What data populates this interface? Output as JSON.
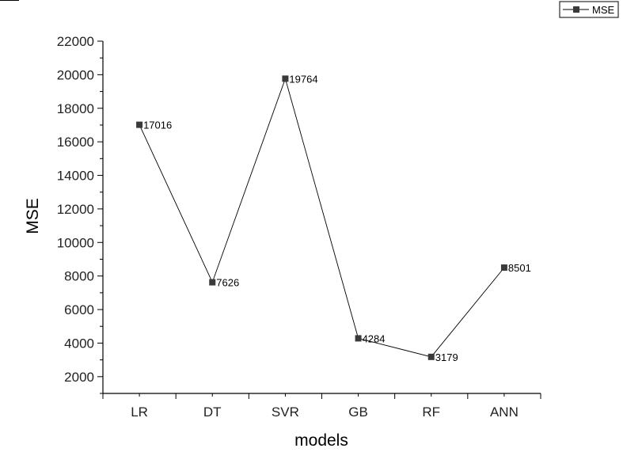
{
  "chart_data": {
    "type": "line",
    "xlabel": "models",
    "ylabel": "MSE",
    "categories": [
      "LR",
      "DT",
      "SVR",
      "GB",
      "RF",
      "ANN"
    ],
    "series": [
      {
        "name": "MSE",
        "values": [
          17016,
          7626,
          19764,
          4284,
          3179,
          8501
        ],
        "labels": [
          "17016",
          "7626",
          "19764",
          "4284",
          "3179",
          "8501"
        ]
      }
    ],
    "ylim": [
      1000,
      22000
    ],
    "yticks": [
      "2000",
      "4000",
      "6000",
      "8000",
      "10000",
      "12000",
      "14000",
      "16000",
      "18000",
      "20000",
      "22000"
    ],
    "legend_position": "top-right",
    "grid": false,
    "colors": {
      "line": "#000000",
      "marker": "#3a3a3a"
    }
  }
}
